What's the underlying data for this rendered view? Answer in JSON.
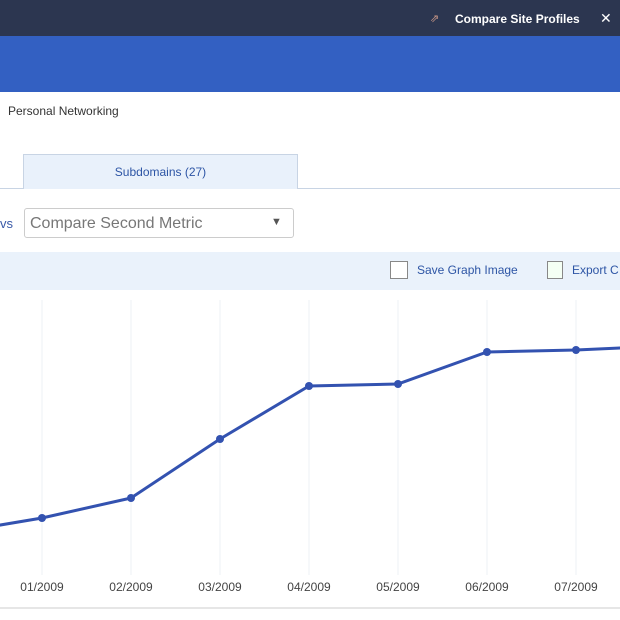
{
  "header": {
    "link": "Compare Site Profiles"
  },
  "breadcrumb": "Personal Networking",
  "tabs": [
    "Subdomains (27)"
  ],
  "compare": {
    "vs": "vs",
    "dropdown": "Compare Second Metric"
  },
  "toolbar": [
    "Save Graph Image",
    "Export C"
  ],
  "chart_data": {
    "type": "line",
    "categories": [
      null,
      "01/2009",
      "02/2009",
      "03/2009",
      "04/2009",
      "05/2009",
      "06/2009",
      "07/2009",
      null
    ],
    "series": [
      {
        "color": "#3352b0",
        "values": [
          67,
          82,
          102,
          161,
          214,
          216,
          248,
          250,
          254
        ]
      }
    ],
    "ylim": [
      0,
      300
    ],
    "grid": true
  }
}
